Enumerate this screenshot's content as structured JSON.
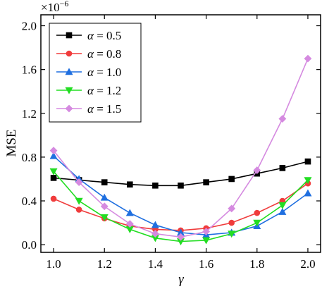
{
  "chart_data": {
    "type": "line",
    "title": "",
    "xlabel": "γ",
    "ylabel": "MSE",
    "y_multiplier_label": "×10",
    "y_multiplier_exponent": "−6",
    "xlim": [
      0.95,
      2.05
    ],
    "ylim": [
      -0.07,
      2.1
    ],
    "x_ticks": [
      1.0,
      1.2,
      1.4,
      1.6,
      1.8,
      2.0
    ],
    "x_tick_labels": [
      "1.0",
      "1.2",
      "1.4",
      "1.6",
      "1.8",
      "2.0"
    ],
    "y_ticks": [
      0.0,
      0.4,
      0.8,
      1.2,
      1.6,
      2.0
    ],
    "y_tick_labels": [
      "0.0",
      "0.4",
      "0.8",
      "1.2",
      "1.6",
      "2.0"
    ],
    "grid": false,
    "legend_position": "top-left",
    "x": [
      1.0,
      1.1,
      1.2,
      1.3,
      1.4,
      1.5,
      1.6,
      1.7,
      1.8,
      1.9,
      2.0
    ],
    "series": [
      {
        "name": "α = 0.5",
        "symbol": "α",
        "value_text": " = 0.5",
        "color": "#000000",
        "marker": "square",
        "values": [
          0.61,
          0.59,
          0.57,
          0.55,
          0.54,
          0.54,
          0.57,
          0.6,
          0.65,
          0.7,
          0.76
        ]
      },
      {
        "name": "α = 0.8",
        "symbol": "α",
        "value_text": " = 0.8",
        "color": "#f03c3c",
        "marker": "circle",
        "values": [
          0.42,
          0.32,
          0.24,
          0.17,
          0.14,
          0.13,
          0.15,
          0.2,
          0.29,
          0.4,
          0.56
        ]
      },
      {
        "name": "α = 1.0",
        "symbol": "α",
        "value_text": " = 1.0",
        "color": "#1f6fe0",
        "marker": "triangle-up",
        "values": [
          0.81,
          0.6,
          0.43,
          0.29,
          0.18,
          0.11,
          0.09,
          0.11,
          0.17,
          0.3,
          0.47
        ]
      },
      {
        "name": "α = 1.2",
        "symbol": "α",
        "value_text": " = 1.2",
        "color": "#22dd22",
        "marker": "triangle-down",
        "values": [
          0.67,
          0.4,
          0.25,
          0.14,
          0.06,
          0.03,
          0.04,
          0.1,
          0.2,
          0.36,
          0.59
        ]
      },
      {
        "name": "α = 1.5",
        "symbol": "α",
        "value_text": " = 1.5",
        "color": "#d58ae0",
        "marker": "diamond",
        "values": [
          0.86,
          0.57,
          0.35,
          0.19,
          0.1,
          0.07,
          0.12,
          0.33,
          0.68,
          1.15,
          1.7
        ]
      }
    ]
  }
}
